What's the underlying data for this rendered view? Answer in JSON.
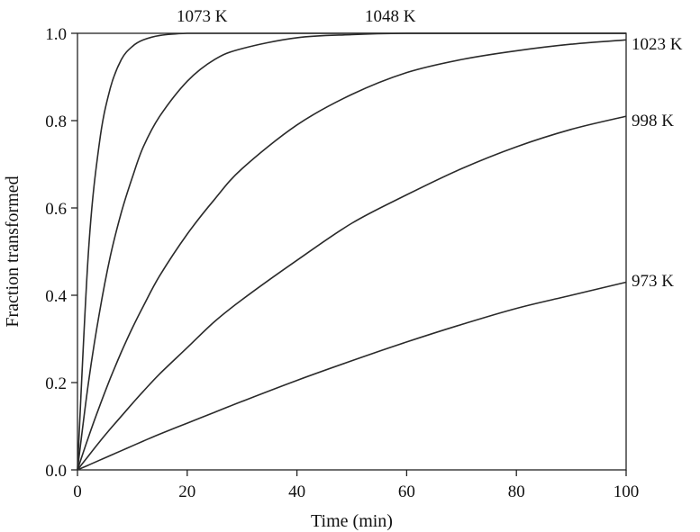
{
  "chart_data": {
    "type": "line",
    "xlabel": "Time (min)",
    "ylabel": "Fraction transformed",
    "xlim": [
      0,
      100
    ],
    "ylim": [
      0,
      1
    ],
    "xticks": [
      "0",
      "20",
      "40",
      "60",
      "80",
      "100"
    ],
    "yticks": [
      "0.0",
      "0.2",
      "0.4",
      "0.6",
      "0.8",
      "1.0"
    ],
    "grid": false,
    "x": [
      0,
      2,
      4,
      6,
      8,
      10,
      12,
      15,
      20,
      25,
      30,
      40,
      50,
      60,
      70,
      80,
      90,
      100
    ],
    "series": [
      {
        "name": "1073 K",
        "values": [
          0,
          0.5,
          0.75,
          0.875,
          0.94,
          0.97,
          0.985,
          0.995,
          1.0,
          1.0,
          1.0,
          1.0,
          1.0,
          1.0,
          1.0,
          1.0,
          1.0,
          1.0
        ]
      },
      {
        "name": "1048 K",
        "values": [
          0,
          0.2,
          0.36,
          0.49,
          0.59,
          0.67,
          0.74,
          0.81,
          0.89,
          0.94,
          0.965,
          0.99,
          0.997,
          1.0,
          1.0,
          1.0,
          1.0,
          1.0
        ]
      },
      {
        "name": "1023 K",
        "values": [
          0,
          0.075,
          0.145,
          0.21,
          0.27,
          0.325,
          0.375,
          0.445,
          0.54,
          0.62,
          0.69,
          0.79,
          0.86,
          0.91,
          0.94,
          0.96,
          0.975,
          0.985
        ]
      },
      {
        "name": "998 K",
        "values": [
          0,
          0.032,
          0.064,
          0.094,
          0.123,
          0.152,
          0.18,
          0.22,
          0.28,
          0.34,
          0.39,
          0.48,
          0.565,
          0.63,
          0.69,
          0.74,
          0.78,
          0.81
        ]
      },
      {
        "name": "973 K",
        "values": [
          0,
          0.011,
          0.022,
          0.033,
          0.044,
          0.055,
          0.066,
          0.082,
          0.107,
          0.132,
          0.157,
          0.205,
          0.25,
          0.293,
          0.333,
          0.37,
          0.4,
          0.43
        ]
      }
    ]
  }
}
